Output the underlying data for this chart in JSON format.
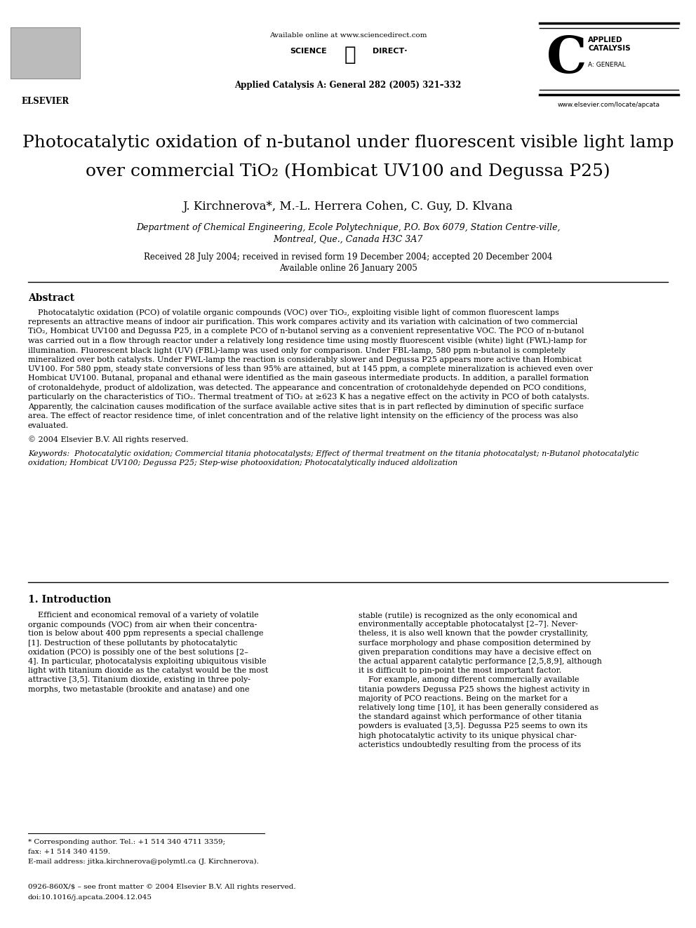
{
  "bg_color": "#ffffff",
  "page_width": 9.92,
  "page_height": 13.23,
  "available_online": "Available online at www.sciencedirect.com",
  "journal_line": "Applied Catalysis A: General 282 (2005) 321–332",
  "website": "www.elsevier.com/locate/apcata",
  "title_line1": "Photocatalytic oxidation of n-butanol under fluorescent visible light lamp",
  "title_line2": "over commercial TiO₂ (Hombicat UV100 and Degussa P25)",
  "authors": "J. Kirchnerova*, M.-L. Herrera Cohen, C. Guy, D. Klvana",
  "affiliation1": "Department of Chemical Engineering, Ecole Polytechnique, P.O. Box 6079, Station Centre-ville,",
  "affiliation2": "Montreal, Que., Canada H3C 3A7",
  "received": "Received 28 July 2004; received in revised form 19 December 2004; accepted 20 December 2004",
  "available_online2": "Available online 26 January 2005",
  "abstract_title": "Abstract",
  "abstract_text": "    Photocatalytic oxidation (PCO) of volatile organic compounds (VOC) over TiO₂, exploiting visible light of common fluorescent lamps represents an attractive means of indoor air purification. This work compares activity and its variation with calcination of two commercial TiO₂, Hombicat UV100 and Degussa P25, in a complete PCO of n-butanol serving as a convenient representative VOC. The PCO of n-butanol was carried out in a flow through reactor under a relatively long residence time using mostly fluorescent visible (white) light (FWL)-lamp for illumination. Fluorescent black light (UV) (FBL)-lamp was used only for comparison. Under FBL-lamp, 580 ppm n-butanol is completely mineralized over both catalysts. Under FWL-lamp the reaction is considerably slower and Degussa P25 appears more active than Hombicat UV100. For 580 ppm, steady state conversions of less than 95% are attained, but at 145 ppm, a complete mineralization is achieved even over Hombicat UV100. Butanal, propanal and ethanal were identified as the main gaseous intermediate products. In addition, a parallel formation of crotonaldehyde, product of aldolization, was detected. The appearance and concentration of crotonaldehyde depended on PCO conditions, particularly on the characteristics of TiO₂. Thermal treatment of TiO₂ at ≥623 K has a negative effect on the activity in PCO of both catalysts. Apparently, the calcination causes modification of the surface available active sites that is in part reflected by diminution of specific surface area. The effect of reactor residence time, of inlet concentration and of the relative light intensity on the efficiency of the process was also evaluated.",
  "copyright": "© 2004 Elsevier B.V. All rights reserved.",
  "keywords_label": "Keywords:",
  "keywords_text": "  Photocatalytic oxidation; Commercial titania photocatalysts; Effect of thermal treatment on the titania photocatalyst; n-Butanol photocatalytic oxidation; Hombicat UV100; Degussa P25; Step-wise photooxidation; Photocatalytically induced aldolization",
  "section1_title": "1. Introduction",
  "section1_col1_lines": [
    "    Efficient and economical removal of a variety of volatile",
    "organic compounds (VOC) from air when their concentra-",
    "tion is below about 400 ppm represents a special challenge",
    "[1]. Destruction of these pollutants by photocatalytic",
    "oxidation (PCO) is possibly one of the best solutions [2–",
    "4]. In particular, photocatalysis exploiting ubiquitous visible",
    "light with titanium dioxide as the catalyst would be the most",
    "attractive [3,5]. Titanium dioxide, existing in three poly-",
    "morphs, two metastable (brookite and anatase) and one"
  ],
  "section1_col2_lines": [
    "stable (rutile) is recognized as the only economical and",
    "environmentally acceptable photocatalyst [2–7]. Never-",
    "theless, it is also well known that the powder crystallinity,",
    "surface morphology and phase composition determined by",
    "given preparation conditions may have a decisive effect on",
    "the actual apparent catalytic performance [2,5,8,9], although",
    "it is difficult to pin-point the most important factor.",
    "    For example, among different commercially available",
    "titania powders Degussa P25 shows the highest activity in",
    "majority of PCO reactions. Being on the market for a",
    "relatively long time [10], it has been generally considered as",
    "the standard against which performance of other titania",
    "powders is evaluated [3,5]. Degussa P25 seems to own its",
    "high photocatalytic activity to its unique physical char-",
    "acteristics undoubtedly resulting from the process of its"
  ],
  "footnote_star": "* Corresponding author. Tel.: +1 514 340 4711 3359;",
  "footnote_fax": "fax: +1 514 340 4159.",
  "footnote_email": "E-mail address: jitka.kirchnerova@polymtl.ca (J. Kirchnerova).",
  "footer_issn": "0926-860X/$ – see front matter © 2004 Elsevier B.V. All rights reserved.",
  "footer_doi": "doi:10.1016/j.apcata.2004.12.045",
  "abstract_wrapped": [
    "    Photocatalytic oxidation (PCO) of volatile organic compounds (VOC) over TiO₂, exploiting visible light of common fluorescent lamps",
    "represents an attractive means of indoor air purification. This work compares activity and its variation with calcination of two commercial",
    "TiO₂, Hombicat UV100 and Degussa P25, in a complete PCO of n-butanol serving as a convenient representative VOC. The PCO of n-butanol",
    "was carried out in a flow through reactor under a relatively long residence time using mostly fluorescent visible (white) light (FWL)-lamp for",
    "illumination. Fluorescent black light (UV) (FBL)-lamp was used only for comparison. Under FBL-lamp, 580 ppm n-butanol is completely",
    "mineralized over both catalysts. Under FWL-lamp the reaction is considerably slower and Degussa P25 appears more active than Hombicat",
    "UV100. For 580 ppm, steady state conversions of less than 95% are attained, but at 145 ppm, a complete mineralization is achieved even over",
    "Hombicat UV100. Butanal, propanal and ethanal were identified as the main gaseous intermediate products. In addition, a parallel formation",
    "of crotonaldehyde, product of aldolization, was detected. The appearance and concentration of crotonaldehyde depended on PCO conditions,",
    "particularly on the characteristics of TiO₂. Thermal treatment of TiO₂ at ≥623 K has a negative effect on the activity in PCO of both catalysts.",
    "Apparently, the calcination causes modification of the surface available active sites that is in part reflected by diminution of specific surface",
    "area. The effect of reactor residence time, of inlet concentration and of the relative light intensity on the efficiency of the process was also",
    "evaluated."
  ],
  "keywords_wrapped": [
    "Keywords:  Photocatalytic oxidation; Commercial titania photocatalysts; Effect of thermal treatment on the titania photocatalyst; n-Butanol photocatalytic",
    "oxidation; Hombicat UV100; Degussa P25; Step-wise photooxidation; Photocatalytically induced aldolization"
  ]
}
